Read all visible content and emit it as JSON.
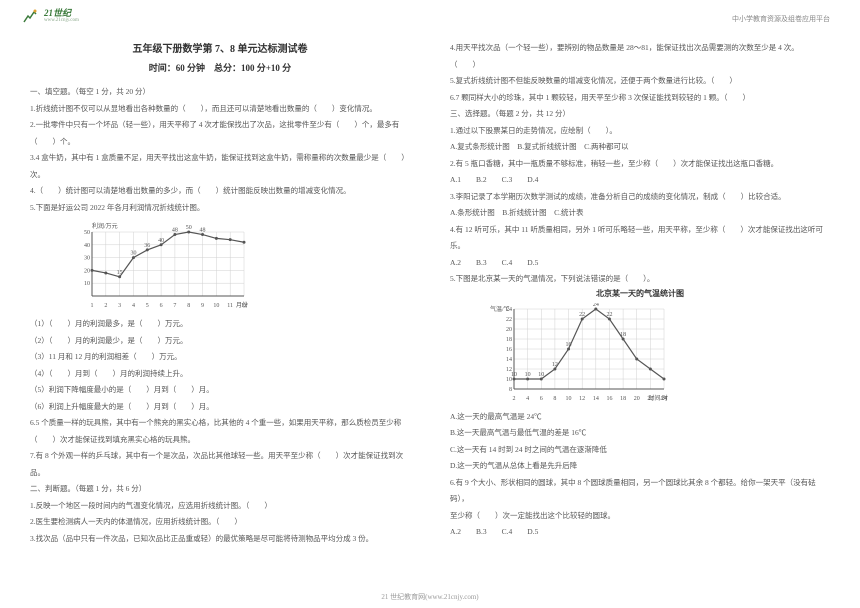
{
  "logo": {
    "main": "21世纪",
    "sub": "www.21cnjy.com"
  },
  "header_right": "中小学教育资源及组卷应用平台",
  "title": "五年级下册数学第 7、8 单元达标测试卷",
  "subtitle": "时间：60 分钟　总分：100 分+10 分",
  "left": {
    "s1_head": "一、填空题。（每空 1 分，共 20 分）",
    "l1": "1.折线统计图不仅可以从显地看出各种数量的（　　），而且还可以清楚地看出数量的（　　）变化情况。",
    "l2": "2.一批零件中只有一个坏品（轻一些），用天平称了 4 次才能保找出了次品，这批零件至少有（　　）个，最多有",
    "l2b": "（　　）个。",
    "l3": "3.4 盒牛奶，其中有 1 盒质量不足，用天平找出这盒牛奶，能保证找到这盒牛奶，需称量称的次数量最少是（　　）次。",
    "l4": "4.（　　）统计图可以清楚地看出数量的多少，而（　　）统计图能反映出数量的增减变化情况。",
    "l5": "5.下面是好运公司 2022 年各月利润情况折线统计图。",
    "chart1": {
      "title": "利润/万元",
      "y_ticks": [
        10,
        20,
        30,
        40,
        50
      ],
      "x_ticks": [
        1,
        2,
        3,
        4,
        5,
        6,
        7,
        8,
        9,
        10,
        11,
        12
      ],
      "x_label": "月份",
      "values": [
        20,
        18,
        15,
        30,
        36,
        40,
        48,
        50,
        48,
        45,
        44,
        42
      ],
      "labels": [
        "",
        "",
        "15",
        "30",
        "36",
        "40",
        "48",
        "50",
        "48",
        "",
        "",
        ""
      ],
      "grid_color": "#d0d0d0",
      "line_color": "#555555",
      "background": "#ffffff"
    },
    "l6": "（1）（　　）月的利润最多，是（　　）万元。",
    "l7": "（2）（　　）月的利润最少，是（　　）万元。",
    "l8": "（3）11 月和 12 月的利润相差（　　）万元。",
    "l9": "（4）（　　）月到（　　）月的利润持续上升。",
    "l10": "（5）利润下降幅度最小的是（　　）月到（　　）月。",
    "l11": "（6）利润上升幅度最大的是（　　）月到（　　）月。",
    "l12": "6.5 个质量一样的玩具熊，其中有一个熊充的黑实心格，比其他的 4 个重一些，如果用天平称，那么质检员至少称",
    "l12b": "（　　）次才能保证找到填充黑实心格的玩具熊。",
    "l13": "7.有 8 个外观一样的乒乓球，其中有一个是次品，次品比其他球轻一些。用天平至少称（　　）次才能保证找到次",
    "l13b": "品。",
    "s2_head": "二、判断题。（每题 1 分，共 6 分）",
    "l14": "1.反映一个地区一段时间内的气温变化情况，应选用折线统计图。（　　）",
    "l15": "2.医生要检测病人一天内的体温情况，应用折线统计图。（　　）",
    "l16": "3.找次品（品中只有一件次品，已知次品比正品重或轻）的最优策略是尽可能将待测物品平均分成 3 份。"
  },
  "right": {
    "l1": "4.用天平找次品（一个轻一些），要辨别的物品数量是 28～81，能保证找出次品需要测的次数至少是 4 次。",
    "l1b": "（　　）",
    "l2": "5.复式折线统计图不但能反映数量的增减变化情况，还便于两个数量进行比较。（　　）",
    "l3": "6.7 颗同样大小的珍珠，其中 1 颗较轻，用天平至少称 3 次保证能找到较轻的 1 颗。（　　）",
    "s3_head": "三、选择题。（每题 2 分，共 12 分）",
    "l4": "1.通过以下股票某日的走势情况，应绘制（　　）。",
    "l4o": "A.复式条形统计图　B.复式折线统计图　C.两种都可以",
    "l5": "2.有 5 瓶口香糖，其中一瓶质量不够标准，稍轻一些，至少称（　　）次才能保证找出这瓶口香糖。",
    "l5o": "A.1　　B.2　　C.3　　D.4",
    "l6": "3.李阳记录了本学期历次数学测试的成绩，准备分析自己的成绩的变化情况，制成（　　）比较合适。",
    "l6o": "A.条形统计图　B.折线统计图　C.统计表",
    "l7": "4.有 12 听可乐，其中 11 听质量相同，另外 1 听可乐略轻一些，用天平称，至少称（　　）次才能保证找出这听可乐。",
    "l7o": "A.2　　B.3　　C.4　　D.5",
    "l8": "5.下图是北京某一天的气温情况，下列说法错误的是（　　）。",
    "chart2": {
      "title": "北京某一天的气温统计图",
      "y_label": "气温/℃",
      "x_label": "时间/时",
      "y_ticks": [
        8,
        10,
        12,
        14,
        16,
        18,
        20,
        22,
        24
      ],
      "x_ticks": [
        2,
        4,
        6,
        8,
        10,
        12,
        14,
        16,
        18,
        20,
        22,
        24
      ],
      "values": [
        10,
        10,
        10,
        12,
        16,
        22,
        24,
        22,
        18,
        14,
        12,
        10
      ],
      "labels": [
        "10",
        "10",
        "10",
        "12",
        "16",
        "22",
        "24",
        "22",
        "18",
        "",
        "",
        ""
      ],
      "grid_color": "#d0d0d0",
      "line_color": "#555555",
      "background": "#ffffff"
    },
    "l9": "A.这一天的最高气温是 24℃",
    "l10": "B.这一天最高气温与最低气温的差是 16℃",
    "l11": "C.这一天有 14 时到 24 时之间的气温在逐渐降低",
    "l12": "D.这一天的气温从总体上看是先升后降",
    "l13": "6.有 9 个大小、形状相同的圆球，其中 8 个圆球质量相同，另一个圆球比其余 8 个都轻。给你一架天平（没有砝码），",
    "l13b": "至少称（　　）次一定能找出这个比较轻的圆球。",
    "l13o": "A.2　　B.3　　C.4　　D.5"
  },
  "footer": "21 世纪教育网(www.21cnjy.com)"
}
